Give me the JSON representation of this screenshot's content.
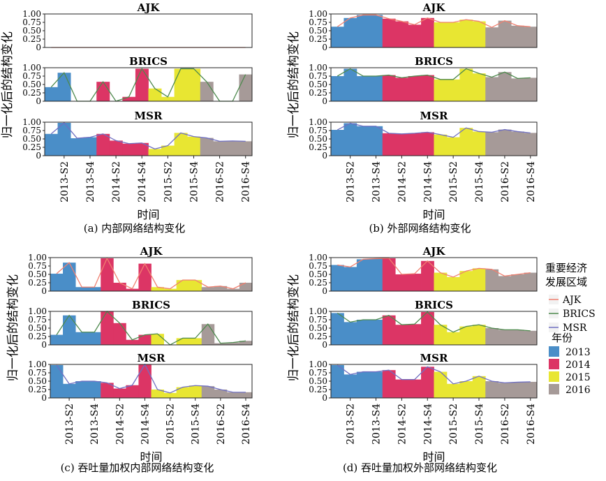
{
  "figure": {
    "xlabel": "时间",
    "ylabel": "归一化后的结构变化",
    "legend": {
      "region_title": "重要经济发展区域",
      "region_items": [
        {
          "name": "AJK",
          "color": "#f08070"
        },
        {
          "name": "BRICS",
          "color": "#4e8a4e"
        },
        {
          "name": "MSR",
          "color": "#6f6fc2"
        }
      ],
      "year_title": "年份",
      "year_items": [
        {
          "name": "2013",
          "color": "#4a8ec8"
        },
        {
          "name": "2014",
          "color": "#dc3565"
        },
        {
          "name": "2015",
          "color": "#e8e632"
        },
        {
          "name": "2016",
          "color": "#a69a98"
        }
      ]
    }
  },
  "chart_data": [
    {
      "type": "area",
      "caption": "(a) 内部网络结构变化",
      "x": [
        "2013-S1",
        "2013-S2",
        "2013-S3",
        "2013-S4",
        "2014-S1",
        "2014-S2",
        "2014-S3",
        "2014-S4",
        "2015-S1",
        "2015-S2",
        "2015-S3",
        "2015-S4",
        "2016-S1",
        "2016-S2",
        "2016-S3",
        "2016-S4"
      ],
      "xticks": [
        "2013-S2",
        "2013-S4",
        "2014-S2",
        "2014-S4",
        "2015-S2",
        "2015-S4",
        "2016-S2",
        "2016-S4"
      ],
      "ylim": [
        0,
        1
      ],
      "yticks": [
        "0",
        "0.25",
        "0.50",
        "0.75",
        "1.00"
      ],
      "years": [
        "2013",
        "2013",
        "2013",
        "2013",
        "2014",
        "2014",
        "2014",
        "2014",
        "2015",
        "2015",
        "2015",
        "2015",
        "2016",
        "2016",
        "2016",
        "2016"
      ],
      "series": [
        {
          "name": "AJK",
          "values": [
            0,
            0,
            0,
            0,
            0,
            0,
            0,
            0,
            0,
            0,
            0,
            0,
            0,
            0,
            0,
            0
          ]
        },
        {
          "name": "BRICS",
          "values": [
            0.42,
            0.85,
            0.0,
            0.0,
            0.58,
            0.0,
            0.13,
            0.97,
            0.38,
            0.13,
            0.97,
            0.97,
            0.58,
            0.0,
            0.0,
            0.8
          ]
        },
        {
          "name": "MSR",
          "values": [
            0.65,
            0.98,
            0.52,
            0.55,
            0.65,
            0.45,
            0.36,
            0.38,
            0.2,
            0.3,
            0.68,
            0.57,
            0.53,
            0.43,
            0.44,
            0.43
          ]
        }
      ]
    },
    {
      "type": "area",
      "caption": "(b) 外部网络结构变化",
      "x": [
        "2013-S1",
        "2013-S2",
        "2013-S3",
        "2013-S4",
        "2014-S1",
        "2014-S2",
        "2014-S3",
        "2014-S4",
        "2015-S1",
        "2015-S2",
        "2015-S3",
        "2015-S4",
        "2016-S1",
        "2016-S2",
        "2016-S3",
        "2016-S4"
      ],
      "xticks": [
        "2013-S2",
        "2013-S4",
        "2014-S2",
        "2014-S4",
        "2015-S2",
        "2015-S4",
        "2016-S2",
        "2016-S4"
      ],
      "ylim": [
        0,
        1
      ],
      "yticks": [
        "0",
        "0.25",
        "0.50",
        "0.75",
        "1.00"
      ],
      "years": [
        "2013",
        "2013",
        "2013",
        "2013",
        "2014",
        "2014",
        "2014",
        "2014",
        "2015",
        "2015",
        "2015",
        "2015",
        "2016",
        "2016",
        "2016",
        "2016"
      ],
      "series": [
        {
          "name": "AJK",
          "values": [
            0.62,
            0.88,
            0.97,
            0.97,
            0.86,
            0.78,
            0.68,
            0.88,
            0.75,
            0.75,
            0.83,
            0.78,
            0.6,
            0.8,
            0.65,
            0.62
          ]
        },
        {
          "name": "BRICS",
          "values": [
            0.75,
            0.97,
            0.75,
            0.75,
            0.78,
            0.7,
            0.75,
            0.78,
            0.65,
            0.65,
            0.97,
            0.83,
            0.72,
            0.87,
            0.68,
            0.7
          ]
        },
        {
          "name": "MSR",
          "values": [
            0.77,
            0.97,
            0.88,
            0.88,
            0.67,
            0.65,
            0.67,
            0.7,
            0.63,
            0.55,
            0.83,
            0.72,
            0.7,
            0.78,
            0.72,
            0.68
          ]
        }
      ]
    },
    {
      "type": "area",
      "caption": "(c) 吞吐量加权内部网络结构变化",
      "x": [
        "2013-S1",
        "2013-S2",
        "2013-S3",
        "2013-S4",
        "2014-S1",
        "2014-S2",
        "2014-S3",
        "2014-S4",
        "2015-S1",
        "2015-S2",
        "2015-S3",
        "2015-S4",
        "2016-S1",
        "2016-S2",
        "2016-S3",
        "2016-S4"
      ],
      "xticks": [
        "2013-S2",
        "2013-S4",
        "2014-S2",
        "2014-S4",
        "2015-S2",
        "2015-S4",
        "2016-S2",
        "2016-S4"
      ],
      "ylim": [
        0,
        1
      ],
      "yticks": [
        "0",
        "0.25",
        "0.50",
        "0.75",
        "1.00"
      ],
      "years": [
        "2013",
        "2013",
        "2013",
        "2013",
        "2014",
        "2014",
        "2014",
        "2014",
        "2015",
        "2015",
        "2015",
        "2015",
        "2016",
        "2016",
        "2016",
        "2016"
      ],
      "series": [
        {
          "name": "AJK",
          "values": [
            0.52,
            0.85,
            0.12,
            0.12,
            0.98,
            0.25,
            0.07,
            0.82,
            0.12,
            0.07,
            0.33,
            0.33,
            0.12,
            0.15,
            0.07,
            0.25
          ]
        },
        {
          "name": "BRICS",
          "values": [
            0.3,
            0.88,
            0.38,
            0.38,
            1.0,
            0.65,
            0.15,
            0.3,
            0.33,
            0.0,
            0.2,
            0.2,
            0.62,
            0.05,
            0.07,
            0.12
          ]
        },
        {
          "name": "MSR",
          "values": [
            0.98,
            0.42,
            0.5,
            0.5,
            0.45,
            0.28,
            0.38,
            1.0,
            0.25,
            0.15,
            0.32,
            0.37,
            0.35,
            0.25,
            0.17,
            0.17
          ]
        }
      ]
    },
    {
      "type": "area",
      "caption": "(d) 吞吐量加权外部网络结构变化",
      "x": [
        "2013-S1",
        "2013-S2",
        "2013-S3",
        "2013-S4",
        "2014-S1",
        "2014-S2",
        "2014-S3",
        "2014-S4",
        "2015-S1",
        "2015-S2",
        "2015-S3",
        "2015-S4",
        "2016-S1",
        "2016-S2",
        "2016-S3",
        "2016-S4"
      ],
      "xticks": [
        "2013-S2",
        "2013-S4",
        "2014-S2",
        "2014-S4",
        "2015-S2",
        "2015-S4",
        "2016-S2",
        "2016-S4"
      ],
      "ylim": [
        0,
        1
      ],
      "yticks": [
        "0",
        "0.25",
        "0.50",
        "0.75",
        "1.00"
      ],
      "years": [
        "2013",
        "2013",
        "2013",
        "2013",
        "2014",
        "2014",
        "2014",
        "2014",
        "2015",
        "2015",
        "2015",
        "2015",
        "2016",
        "2016",
        "2016",
        "2016"
      ],
      "series": [
        {
          "name": "AJK",
          "values": [
            0.78,
            0.72,
            0.95,
            0.97,
            0.98,
            0.5,
            0.52,
            0.9,
            0.55,
            0.42,
            0.6,
            0.68,
            0.65,
            0.45,
            0.5,
            0.55
          ]
        },
        {
          "name": "BRICS",
          "values": [
            0.95,
            0.68,
            0.75,
            0.75,
            0.88,
            0.6,
            0.62,
            0.98,
            0.6,
            0.38,
            0.55,
            0.6,
            0.5,
            0.45,
            0.45,
            0.42
          ]
        },
        {
          "name": "MSR",
          "values": [
            0.98,
            0.7,
            0.78,
            0.78,
            0.83,
            0.55,
            0.55,
            0.93,
            0.78,
            0.42,
            0.5,
            0.65,
            0.5,
            0.45,
            0.47,
            0.48
          ]
        }
      ]
    }
  ]
}
